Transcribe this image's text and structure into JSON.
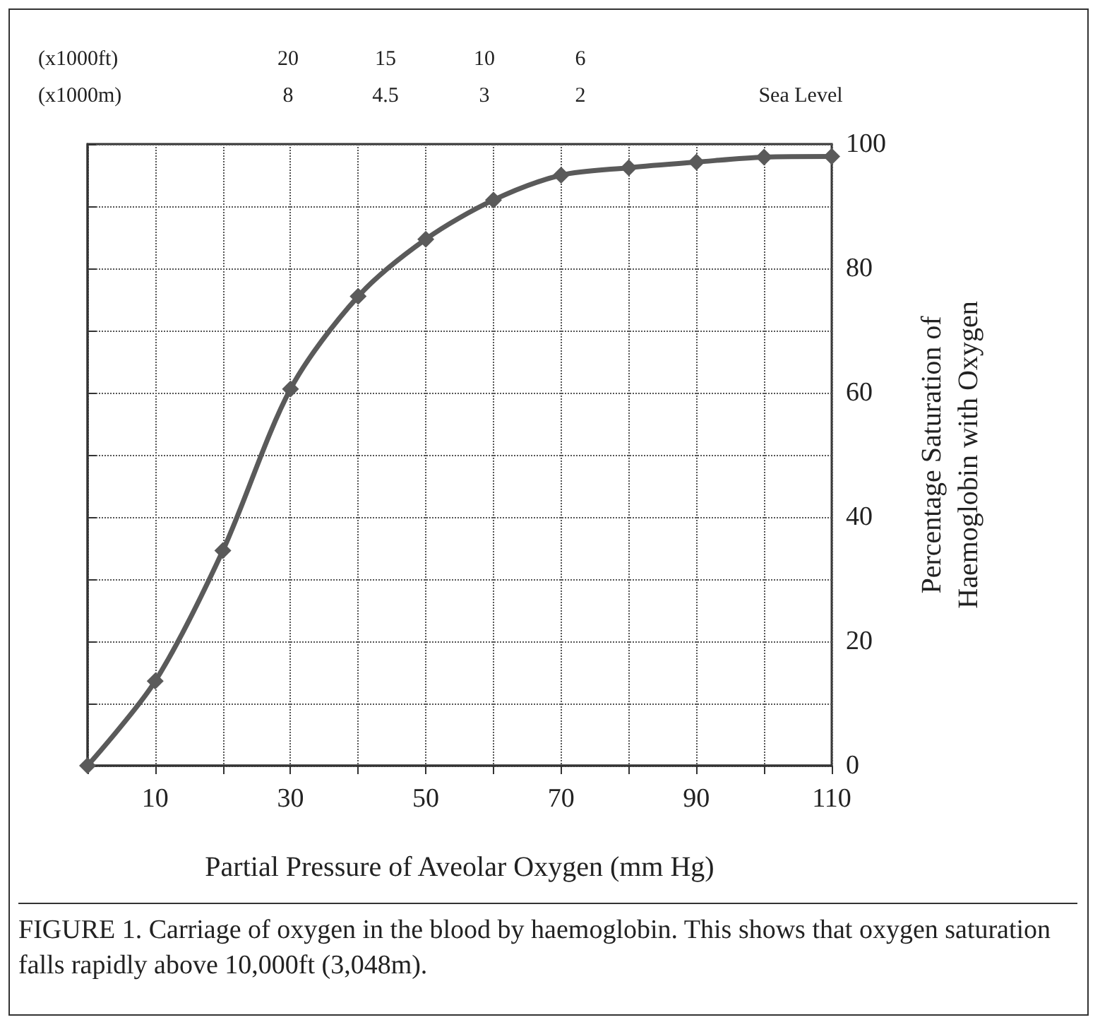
{
  "chart_data": {
    "type": "line",
    "xlabel": "Partial Pressure of Aveolar Oxygen (mm Hg)",
    "ylabel": "Percentage Saturation of\nHaemoglobin with Oxygen",
    "x": [
      0,
      10,
      20,
      30,
      40,
      50,
      60,
      70,
      80,
      90,
      100,
      110
    ],
    "series": [
      {
        "color": "#5a5a5a",
        "values": [
          0,
          13.6,
          34.6,
          60.6,
          75.5,
          84.7,
          91,
          95,
          96.2,
          97.1,
          97.9,
          98
        ]
      }
    ],
    "xlim": [
      0,
      110
    ],
    "xticks": [
      {
        "value": 0,
        "label": null
      },
      10,
      {
        "value": 20,
        "label": null
      },
      30,
      {
        "value": 40,
        "label": null
      },
      50,
      {
        "value": 60,
        "label": null
      },
      70,
      {
        "value": 80,
        "label": null
      },
      90,
      {
        "value": 100,
        "label": null
      },
      110
    ],
    "ylim": [
      0,
      100
    ],
    "yticks": [
      0,
      {
        "value": 10,
        "label": null
      },
      20,
      {
        "value": 30,
        "label": null
      },
      40,
      {
        "value": 50,
        "label": null
      },
      60,
      {
        "value": 70,
        "label": null
      },
      80,
      {
        "value": 90,
        "label": null
      },
      100
    ],
    "annotations": [
      "(x1000ft)\n(x1000m)",
      "20\n8",
      "15\n4.5",
      "10\n3",
      "6\n2",
      "Sea Level",
      "FIGURE 1. Carriage of oxygen in the blood by haemoglobin. This shows that oxygen saturation falls rapidly above 10,000ft (3,048m)."
    ],
    "grid": true,
    "marker": "diamond",
    "line_style": "solid"
  }
}
